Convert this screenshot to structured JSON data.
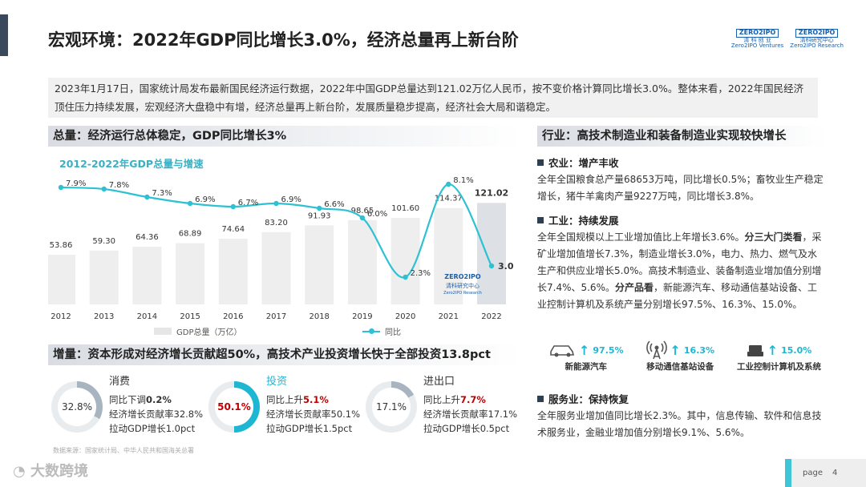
{
  "header": {
    "title": "宏观环境：2022年GDP同比增长3.0%，经济总量再上新台阶",
    "logo1_top": "ZERO2IPO",
    "logo1_cn": "清 科 创 业",
    "logo1_en": "Zero2IPO Ventures",
    "logo2_top": "ZERO2IPO",
    "logo2_cn": "清科研究中心",
    "logo2_en": "Zero2IPO Research"
  },
  "intro": "2023年1月17日，国家统计局发布最新国民经济运行数据，2022年中国GDP总量达到121.02万亿人民币，按不变价格计算同比增长3.0%。整体来看，2022年国民经济顶住压力持续发展，宏观经济大盘稳中有增，经济总量再上新台阶，发展质量稳步提高，经济社会大局和谐稳定。",
  "left_section_title": "总量：经济运行总体稳定，GDP同比增长3%",
  "chart_data": {
    "type": "bar+line",
    "title": "2012-2022年GDP总量与增速",
    "categories": [
      "2012",
      "2013",
      "2014",
      "2015",
      "2016",
      "2017",
      "2018",
      "2019",
      "2020",
      "2021",
      "2022"
    ],
    "series": [
      {
        "name": "GDP总量（万亿）",
        "type": "bar",
        "values": [
          53.86,
          59.3,
          64.36,
          68.89,
          74.64,
          83.2,
          91.93,
          98.65,
          101.6,
          114.37,
          121.02
        ]
      },
      {
        "name": "同比",
        "type": "line",
        "values": [
          7.9,
          7.8,
          7.3,
          6.9,
          6.7,
          6.9,
          6.6,
          6.0,
          2.3,
          8.1,
          3.0
        ]
      }
    ],
    "bar_labels": [
      "53.86",
      "59.30",
      "64.36",
      "68.89",
      "74.64",
      "83.20",
      "91.93",
      "98.65",
      "101.60",
      "114.37",
      "121.02"
    ],
    "line_labels": [
      "7.9%",
      "7.8%",
      "7.3%",
      "6.9%",
      "6.7%",
      "6.9%",
      "6.6%",
      "6.0%",
      "2.3%",
      "8.1%",
      "3.0%"
    ],
    "legend_bar": "GDP总量（万亿）",
    "legend_line": "同比",
    "watermark_logo": "ZERO2IPO",
    "watermark_cn": "清科研究中心",
    "watermark_en": "Zero2IPO Research",
    "bar_color": "#eeeeee",
    "bar_color_last": "#dde1e6",
    "line_color": "#2ec1d2"
  },
  "left_section2_title": "增量：资本形成对经济增长贡献超50%，高技术产业投资增长快于全部投资13.8pct",
  "rings": [
    {
      "cat": "消费",
      "pct": "32.8%",
      "value": 32.8,
      "line1_pre": "同比下调",
      "line1_val": "0.2%",
      "line2": "经济增长贡献率32.8%",
      "line3": "拉动GDP增长1.0pct",
      "color": "#a9b4c1"
    },
    {
      "cat": "投资",
      "pct": "50.1%",
      "value": 50.1,
      "line1_pre": "同比上升",
      "line1_val": "5.1%",
      "line2": "经济增长贡献率50.1%",
      "line3": "拉动GDP增长1.5pct",
      "color": "#1eb6d3"
    },
    {
      "cat": "进出口",
      "pct": "17.1%",
      "value": 17.1,
      "line1_pre": "同比上升",
      "line1_val": "7.7%",
      "line2": "经济增长贡献率17.1%",
      "line3": "拉动GDP增长0.5pct",
      "color": "#a9b4c1"
    }
  ],
  "source": "数据来源：国家统计局、中华人民共和国海关总署",
  "watermark": "大数跨境",
  "right_section_title": "行业：高技术制造业和装备制造业实现较快增长",
  "agri": {
    "head": "农业：增产丰收",
    "body": "全年全国粮食总产量68653万吨，同比增长0.5%；畜牧业生产稳定增长，猪牛羊禽肉产量9227万吨，同比增长3.8%。"
  },
  "industry": {
    "head": "工业：持续发展",
    "body1": "全年全国规模以上工业增加值比上年增长3.6%。",
    "b1": "分三大门类看",
    "body2": "，采矿业增加值增长7.3%，制造业增长3.0%，电力、热力、燃气及水生产和供应业增长5.0%。高技术制造业、装备制造业增加值分别增长7.4%、5.6%。",
    "b2": "分产品看",
    "body3": "，新能源汽车、移动通信基站设备、工业控制计算机及系统产量分别增长97.5%、16.3%、15.0%。"
  },
  "icons": [
    {
      "pct": "97.5%",
      "label": "新能源汽车"
    },
    {
      "pct": "16.3%",
      "label": "移动通信基站设备"
    },
    {
      "pct": "15.0%",
      "label": "工业控制计算机及系统"
    }
  ],
  "service": {
    "head": "服务业：保持恢复",
    "body": "全年服务业增加值同比增长2.3%。其中，信息传输、软件和信息技术服务业，金融业增加值分别增长9.1%、5.6%。"
  },
  "page": {
    "label": "page",
    "num": "4"
  }
}
